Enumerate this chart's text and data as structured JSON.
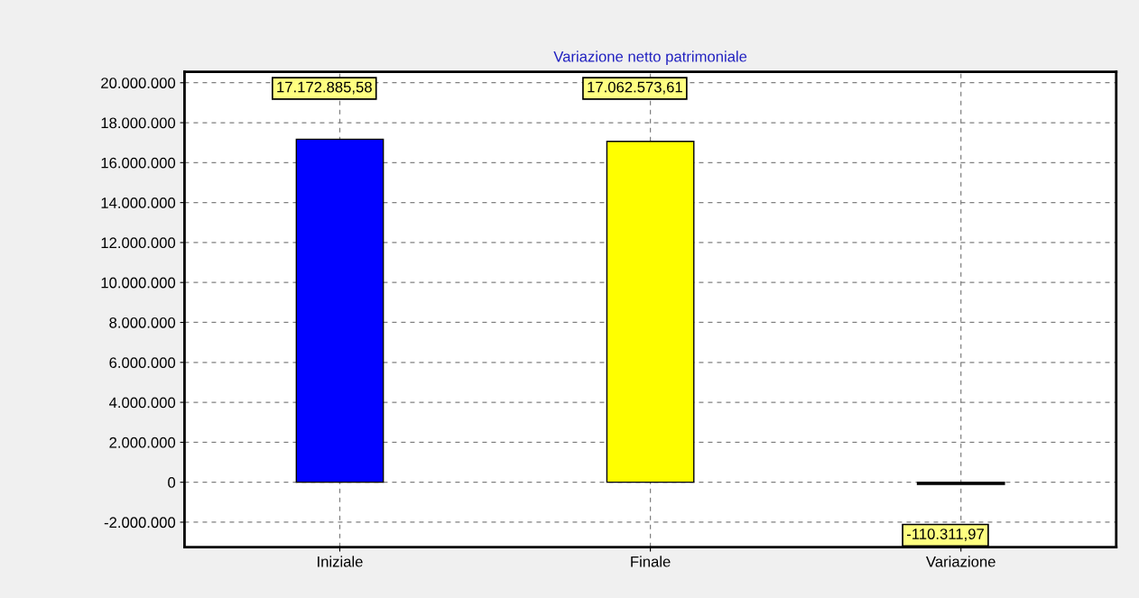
{
  "chart_data": {
    "type": "bar",
    "title": "Variazione netto patrimoniale",
    "categories": [
      "Iniziale",
      "Finale",
      "Variazione"
    ],
    "values": [
      17172885.58,
      17062573.61,
      -110311.97
    ],
    "colors": [
      "#0000ff",
      "#ffff00",
      "#000000"
    ],
    "value_labels": [
      "17.172.885,58",
      "17.062.573,61",
      "-110.311,97"
    ],
    "ylim": [
      -3250000,
      20550000
    ],
    "yticks": [
      {
        "value": -2000000,
        "label": "-2.000.000"
      },
      {
        "value": 0,
        "label": "0"
      },
      {
        "value": 2000000,
        "label": "2.000.000"
      },
      {
        "value": 4000000,
        "label": "4.000.000"
      },
      {
        "value": 6000000,
        "label": "6.000.000"
      },
      {
        "value": 8000000,
        "label": "8.000.000"
      },
      {
        "value": 10000000,
        "label": "10.000.000"
      },
      {
        "value": 12000000,
        "label": "12.000.000"
      },
      {
        "value": 14000000,
        "label": "14.000.000"
      },
      {
        "value": 16000000,
        "label": "16.000.000"
      },
      {
        "value": 18000000,
        "label": "18.000.000"
      },
      {
        "value": 20000000,
        "label": "20.000.000"
      }
    ],
    "grid": true
  }
}
